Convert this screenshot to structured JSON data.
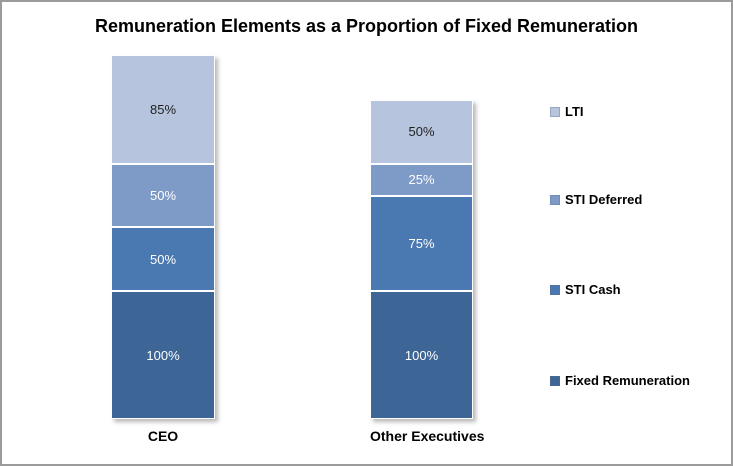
{
  "chart_data": {
    "type": "bar",
    "stacked": true,
    "title": "Remuneration Elements as a Proportion of Fixed Remuneration",
    "categories": [
      "CEO",
      "Other Executives"
    ],
    "series": [
      {
        "name": "Fixed Remuneration",
        "color": "#3D6596",
        "label_color": "#FFFFFF",
        "values": [
          100,
          100
        ]
      },
      {
        "name": "STI Cash",
        "color": "#4A79B2",
        "label_color": "#FFFFFF",
        "values": [
          50,
          75
        ]
      },
      {
        "name": "STI Deferred",
        "color": "#7E9BC8",
        "label_color": "#FFFFFF",
        "values": [
          50,
          25
        ]
      },
      {
        "name": "LTI",
        "color": "#B6C4DE",
        "label_color": "#1F1F1F",
        "values": [
          85,
          50
        ]
      }
    ],
    "value_suffix": "%",
    "data_labels": true,
    "data_labels_ceo": [
      "100%",
      "50%",
      "50%",
      "85%"
    ],
    "data_labels_other_executives": [
      "100%",
      "75%",
      "25%",
      "50%"
    ],
    "legend": {
      "position": "right",
      "entries": [
        "LTI",
        "STI Deferred",
        "STI Cash",
        "Fixed Remuneration"
      ]
    },
    "axes": {
      "y_axis_visible": false,
      "gridlines": false
    }
  }
}
